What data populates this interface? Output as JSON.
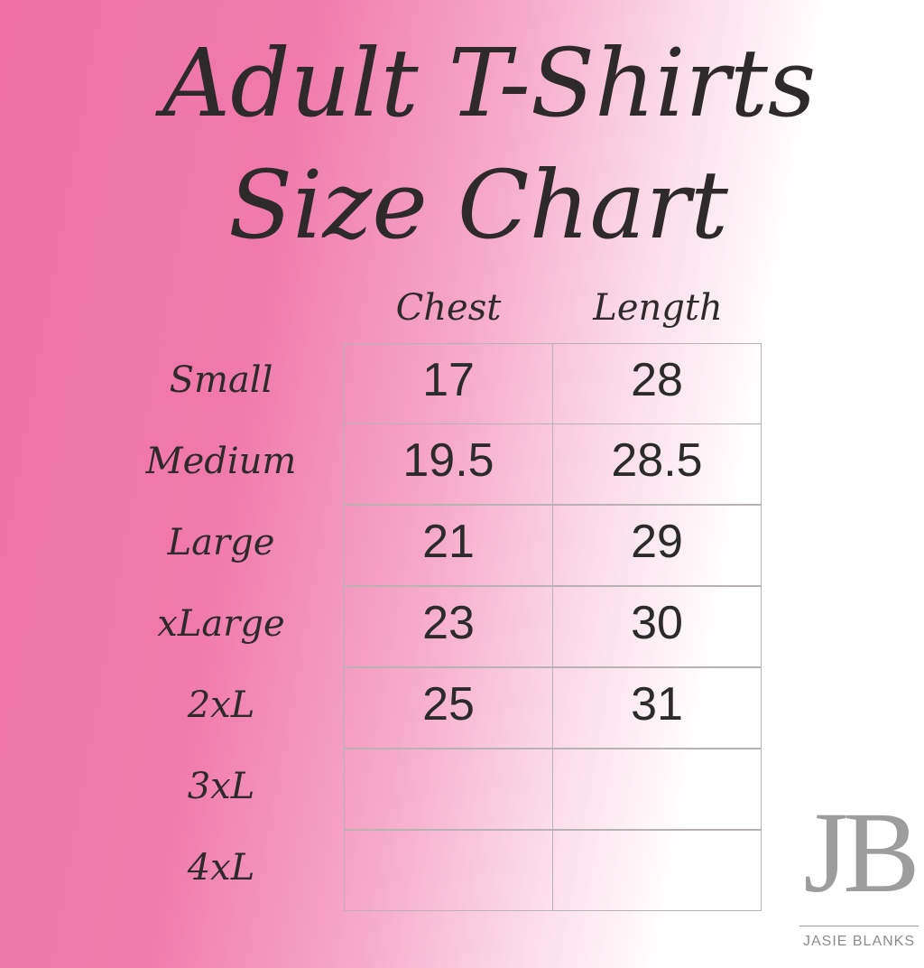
{
  "header": {
    "title_line1": "Adult T-Shirts",
    "title_line2": "Size Chart"
  },
  "table": {
    "columns": [
      "Chest",
      "Length"
    ],
    "rows": [
      [
        "Small",
        17,
        28
      ],
      [
        "Medium",
        19.5,
        28.5
      ],
      [
        "Large",
        21,
        29
      ],
      [
        "xLarge",
        23,
        30
      ],
      [
        "2xL",
        25,
        31
      ],
      [
        "3xL"
      ],
      [
        "4xL"
      ]
    ]
  },
  "logo": {
    "mark": "JB",
    "text": "JASIE BLANKS"
  }
}
